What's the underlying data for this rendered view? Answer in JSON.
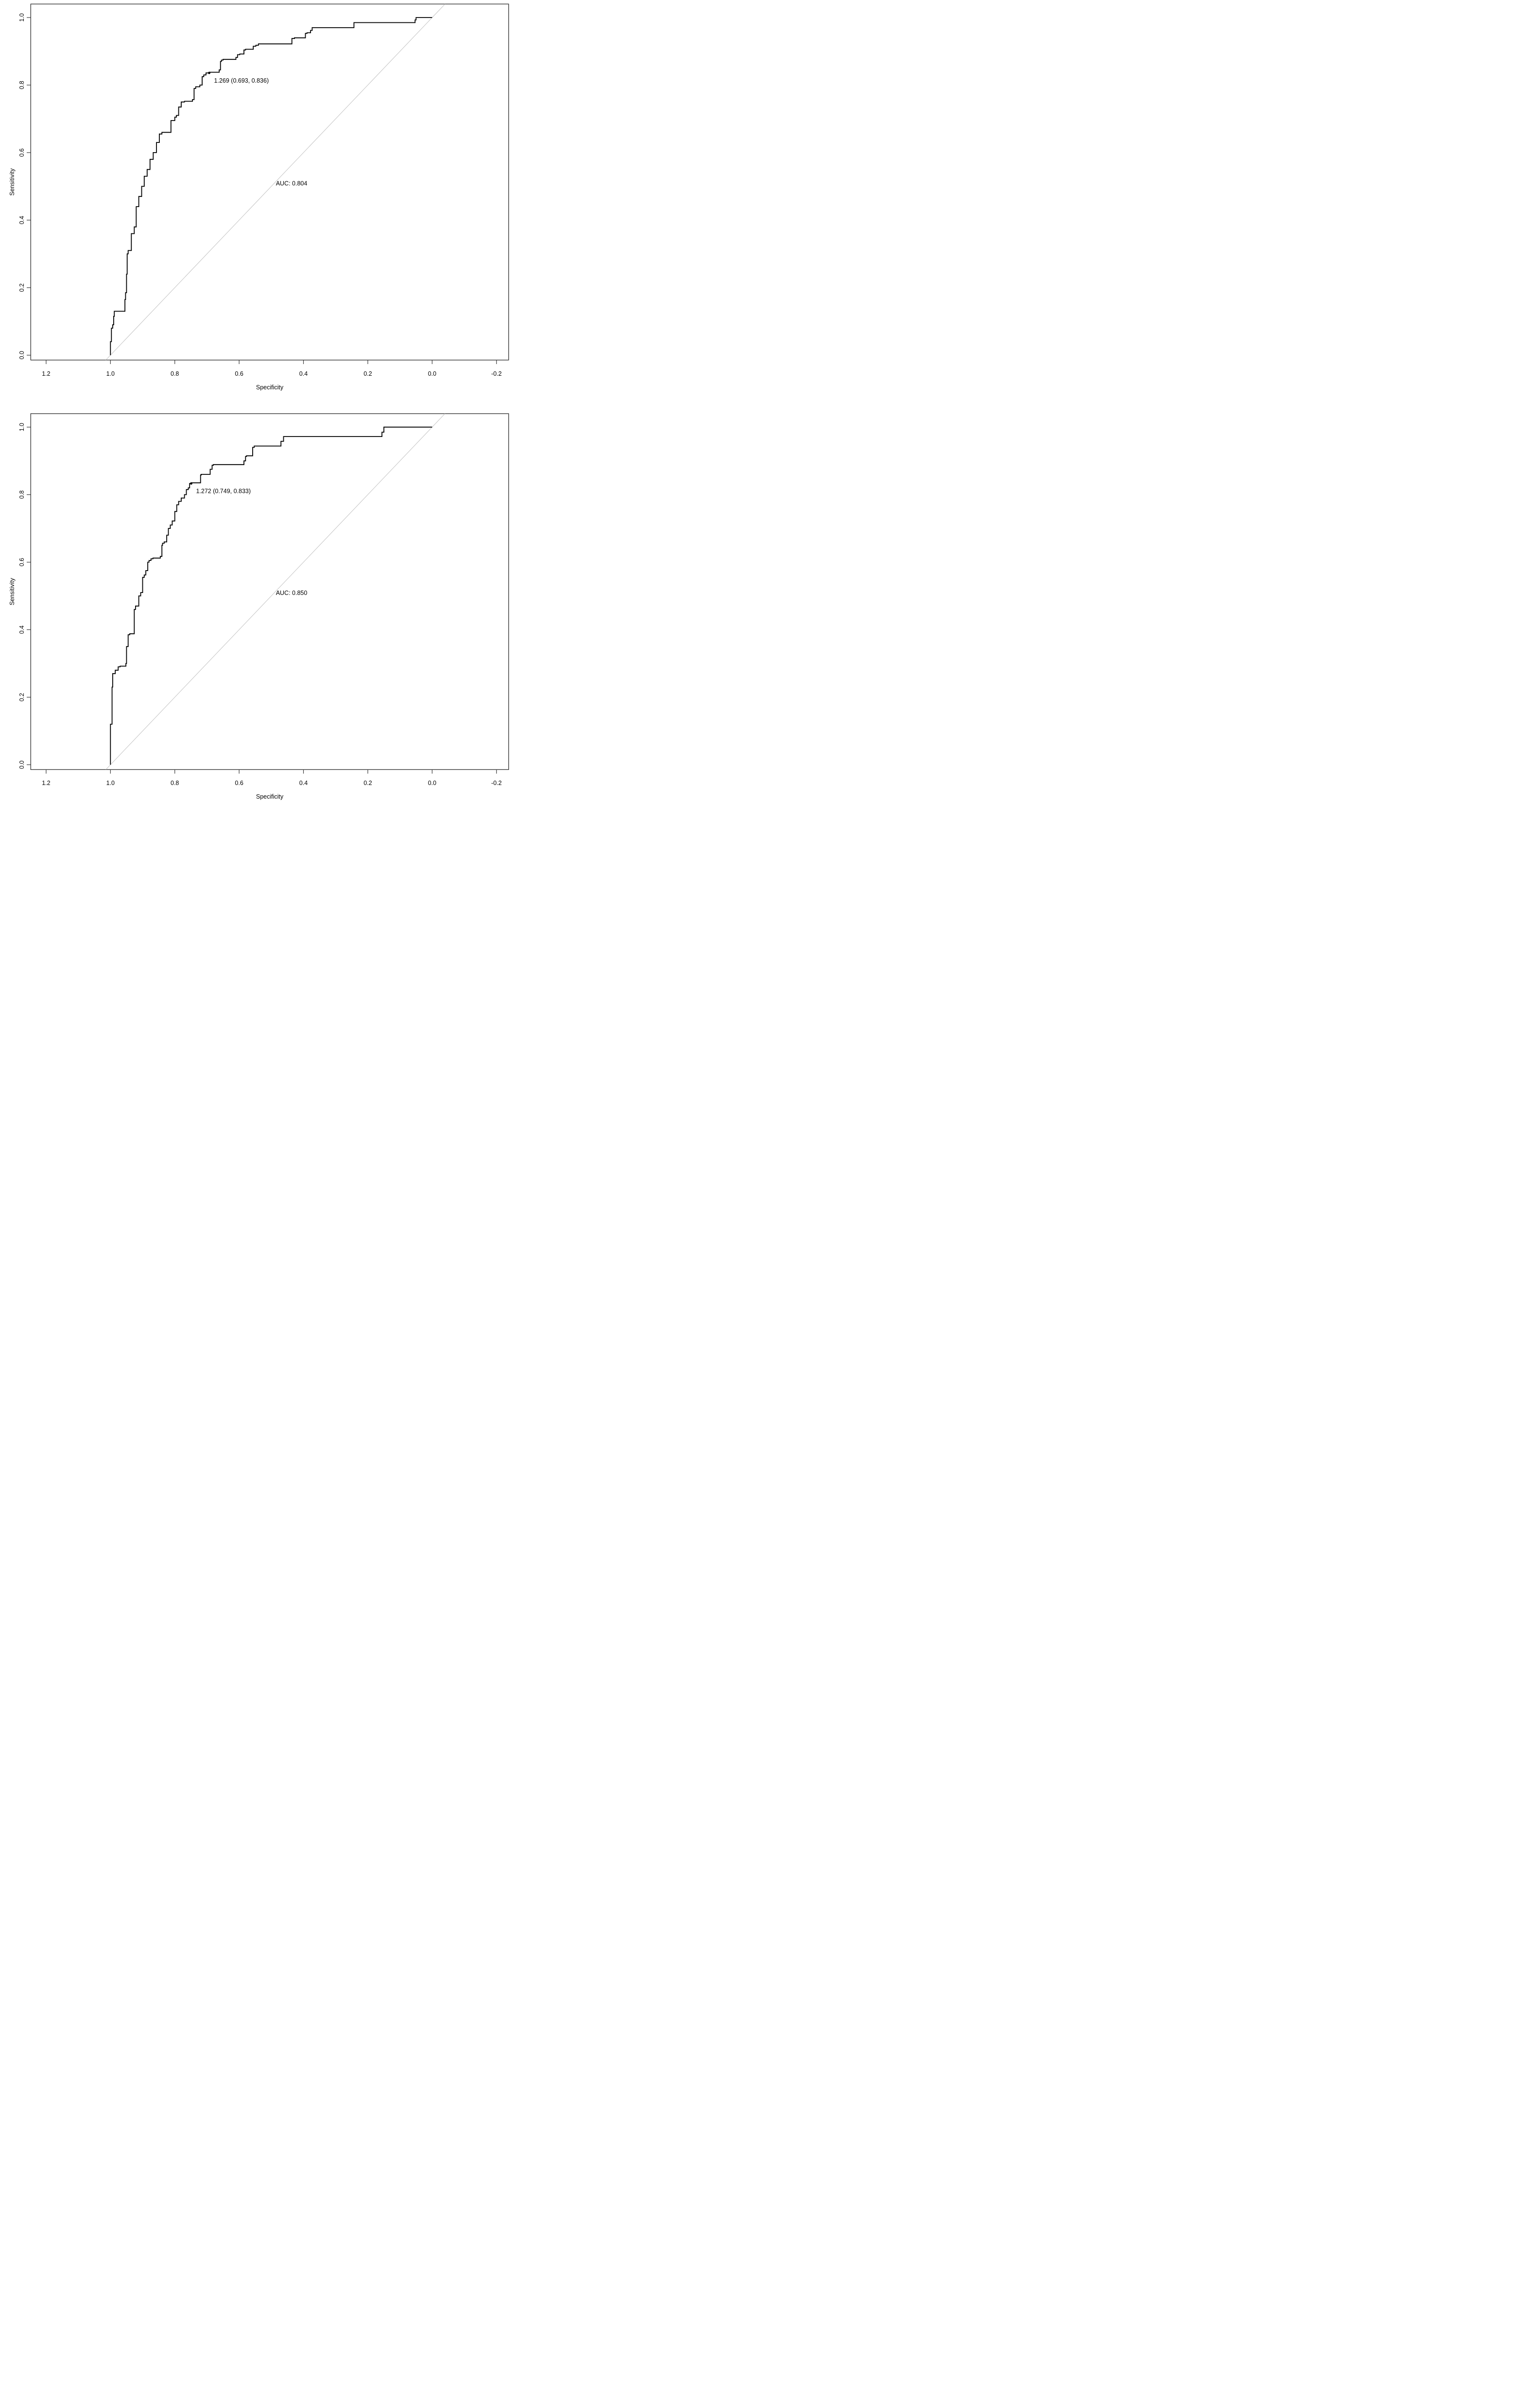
{
  "figure": {
    "background": "#ffffff",
    "text_color": "#000000",
    "frame_color": "#3a3a3a",
    "description": "Two ROC curve plots stacked vertically"
  },
  "chart_data": [
    {
      "type": "line",
      "subtype": "roc-step-curve",
      "panel": "top",
      "xlabel": "Specificity",
      "ylabel": "Sensitivity",
      "x_axis_reversed": true,
      "x_ticks": [
        1.2,
        1.0,
        0.8,
        0.6,
        0.4,
        0.2,
        0.0,
        -0.2
      ],
      "x_tick_labels": [
        "1.2",
        "1.0",
        "0.8",
        "0.6",
        "0.4",
        "0.2",
        "0.0",
        "-0.2"
      ],
      "y_ticks": [
        1.0,
        0.8,
        0.6,
        0.4,
        0.2,
        0.0
      ],
      "y_tick_labels": [
        "1.0",
        "0.8",
        "0.6",
        "0.4",
        "0.2",
        "0.0"
      ],
      "xlim": [
        1.248,
        -0.238
      ],
      "ylim": [
        -0.014,
        1.04
      ],
      "grid": false,
      "legend": false,
      "auc_label": "AUC: 0.804",
      "auc_value": 0.804,
      "auc_label_pos": [
        0.437,
        0.503
      ],
      "best_threshold": {
        "label": "1.269 (0.693, 0.836)",
        "threshold": 1.269,
        "specificity": 0.693,
        "sensitivity": 0.836
      },
      "curve_color": "#000000",
      "diagonal_color": "#bdbdbd",
      "diagonal_line": {
        "from": [
          1.0144,
          -0.0144
        ],
        "to": [
          -0.0399,
          1.0399
        ]
      },
      "points": [
        [
          1.0,
          0.0
        ],
        [
          1.0,
          0.02
        ],
        [
          0.997,
          0.04
        ],
        [
          0.997,
          0.06
        ],
        [
          0.993,
          0.08
        ],
        [
          0.99,
          0.09
        ],
        [
          0.988,
          0.115
        ],
        [
          0.98,
          0.13
        ],
        [
          0.955,
          0.13
        ],
        [
          0.953,
          0.165
        ],
        [
          0.95,
          0.185
        ],
        [
          0.948,
          0.24
        ],
        [
          0.945,
          0.3
        ],
        [
          0.935,
          0.31
        ],
        [
          0.926,
          0.36
        ],
        [
          0.92,
          0.38
        ],
        [
          0.912,
          0.44
        ],
        [
          0.903,
          0.47
        ],
        [
          0.895,
          0.5
        ],
        [
          0.886,
          0.53
        ],
        [
          0.877,
          0.55
        ],
        [
          0.867,
          0.58
        ],
        [
          0.857,
          0.6
        ],
        [
          0.848,
          0.63
        ],
        [
          0.84,
          0.655
        ],
        [
          0.812,
          0.66
        ],
        [
          0.8,
          0.695
        ],
        [
          0.795,
          0.705
        ],
        [
          0.788,
          0.71
        ],
        [
          0.78,
          0.735
        ],
        [
          0.77,
          0.75
        ],
        [
          0.745,
          0.752
        ],
        [
          0.74,
          0.757
        ],
        [
          0.735,
          0.79
        ],
        [
          0.722,
          0.795
        ],
        [
          0.715,
          0.8
        ],
        [
          0.71,
          0.825
        ],
        [
          0.703,
          0.83
        ],
        [
          0.693,
          0.836
        ],
        [
          0.662,
          0.838
        ],
        [
          0.658,
          0.845
        ],
        [
          0.655,
          0.87
        ],
        [
          0.65,
          0.874
        ],
        [
          0.61,
          0.876
        ],
        [
          0.605,
          0.882
        ],
        [
          0.598,
          0.89
        ],
        [
          0.585,
          0.892
        ],
        [
          0.58,
          0.904
        ],
        [
          0.556,
          0.906
        ],
        [
          0.548,
          0.915
        ],
        [
          0.54,
          0.918
        ],
        [
          0.534,
          0.922
        ],
        [
          0.436,
          0.922
        ],
        [
          0.428,
          0.938
        ],
        [
          0.394,
          0.94
        ],
        [
          0.389,
          0.953
        ],
        [
          0.378,
          0.955
        ],
        [
          0.373,
          0.962
        ],
        [
          0.37,
          0.97
        ],
        [
          0.243,
          0.97
        ],
        [
          0.239,
          0.985
        ],
        [
          0.053,
          0.985
        ],
        [
          0.05,
          0.993
        ],
        [
          0.045,
          1.0
        ],
        [
          0.0,
          1.0
        ]
      ]
    },
    {
      "type": "line",
      "subtype": "roc-step-curve",
      "panel": "bottom",
      "xlabel": "Specificity",
      "ylabel": "Sensitivity",
      "x_axis_reversed": true,
      "x_ticks": [
        1.2,
        1.0,
        0.8,
        0.6,
        0.4,
        0.2,
        0.0,
        -0.2
      ],
      "x_tick_labels": [
        "1.2",
        "1.0",
        "0.8",
        "0.6",
        "0.4",
        "0.2",
        "0.0",
        "-0.2"
      ],
      "y_ticks": [
        1.0,
        0.8,
        0.6,
        0.4,
        0.2,
        0.0
      ],
      "y_tick_labels": [
        "1.0",
        "0.8",
        "0.6",
        "0.4",
        "0.2",
        "0.0"
      ],
      "xlim": [
        1.248,
        -0.238
      ],
      "ylim": [
        -0.014,
        1.04
      ],
      "grid": false,
      "legend": false,
      "auc_label": "AUC: 0.850",
      "auc_value": 0.85,
      "auc_label_pos": [
        0.437,
        0.503
      ],
      "best_threshold": {
        "label": "1.272 (0.749, 0.833)",
        "threshold": 1.272,
        "specificity": 0.749,
        "sensitivity": 0.833
      },
      "curve_color": "#000000",
      "diagonal_color": "#bdbdbd",
      "diagonal_line": {
        "from": [
          1.0144,
          -0.0144
        ],
        "to": [
          -0.0399,
          1.0399
        ]
      },
      "points": [
        [
          1.0,
          0.0
        ],
        [
          1.0,
          0.115
        ],
        [
          0.995,
          0.12
        ],
        [
          0.993,
          0.23
        ],
        [
          0.985,
          0.27
        ],
        [
          0.976,
          0.28
        ],
        [
          0.97,
          0.29
        ],
        [
          0.952,
          0.292
        ],
        [
          0.95,
          0.3
        ],
        [
          0.945,
          0.35
        ],
        [
          0.94,
          0.385
        ],
        [
          0.926,
          0.388
        ],
        [
          0.922,
          0.46
        ],
        [
          0.912,
          0.47
        ],
        [
          0.906,
          0.5
        ],
        [
          0.9,
          0.51
        ],
        [
          0.895,
          0.555
        ],
        [
          0.89,
          0.562
        ],
        [
          0.884,
          0.575
        ],
        [
          0.88,
          0.6
        ],
        [
          0.874,
          0.605
        ],
        [
          0.868,
          0.61
        ],
        [
          0.845,
          0.612
        ],
        [
          0.84,
          0.617
        ],
        [
          0.838,
          0.65
        ],
        [
          0.833,
          0.656
        ],
        [
          0.825,
          0.66
        ],
        [
          0.82,
          0.68
        ],
        [
          0.814,
          0.7
        ],
        [
          0.808,
          0.71
        ],
        [
          0.8,
          0.722
        ],
        [
          0.794,
          0.75
        ],
        [
          0.788,
          0.77
        ],
        [
          0.78,
          0.78
        ],
        [
          0.77,
          0.79
        ],
        [
          0.764,
          0.8
        ],
        [
          0.758,
          0.815
        ],
        [
          0.754,
          0.82
        ],
        [
          0.749,
          0.833
        ],
        [
          0.72,
          0.835
        ],
        [
          0.718,
          0.858
        ],
        [
          0.69,
          0.86
        ],
        [
          0.684,
          0.875
        ],
        [
          0.68,
          0.887
        ],
        [
          0.585,
          0.889
        ],
        [
          0.58,
          0.9
        ],
        [
          0.577,
          0.913
        ],
        [
          0.558,
          0.915
        ],
        [
          0.553,
          0.94
        ],
        [
          0.47,
          0.944
        ],
        [
          0.462,
          0.958
        ],
        [
          0.455,
          0.972
        ],
        [
          0.156,
          0.972
        ],
        [
          0.15,
          0.985
        ],
        [
          0.146,
          1.0
        ],
        [
          0.0,
          1.0
        ]
      ]
    }
  ]
}
